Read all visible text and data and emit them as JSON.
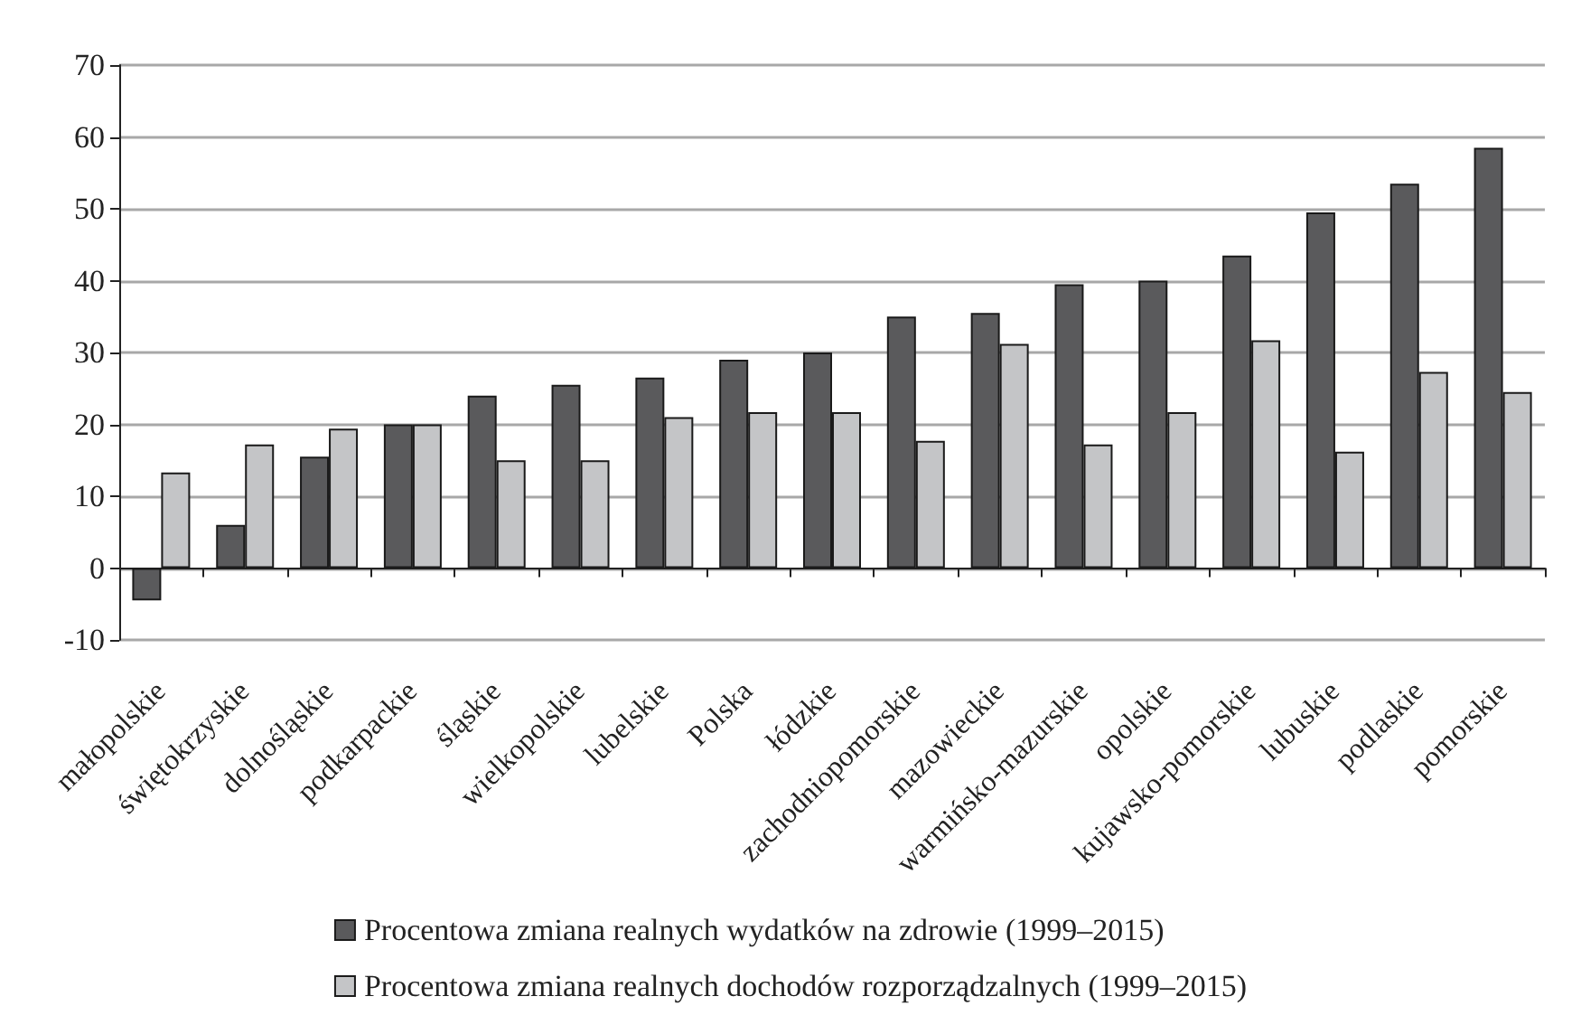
{
  "chart_data": {
    "type": "bar",
    "categories": [
      "małopolskie",
      "świętokrzyskie",
      "dolnośląskie",
      "podkarpackie",
      "śląskie",
      "wielkopolskie",
      "lubelskie",
      "Polska",
      "łódzkie",
      "zachodniopomorskie",
      "mazowieckie",
      "warmińsko-mazurskie",
      "opolskie",
      "kujawsko-pomorskie",
      "lubuskie",
      "podlaskie",
      "pomorskie"
    ],
    "series": [
      {
        "name": "Procentowa zmiana realnych wydatków na zdrowie (1999–2015)",
        "color": "#5a5a5c",
        "values": [
          -4.5,
          6,
          15.5,
          20,
          24,
          25.5,
          26.5,
          29,
          30,
          35,
          35.5,
          39.5,
          40,
          43.5,
          49.5,
          53.5,
          58.5
        ]
      },
      {
        "name": "Procentowa zmiana realnych dochodów rozporządzalnych (1999–2015)",
        "color": "#c4c5c7",
        "values": [
          13.3,
          17.2,
          19.4,
          20,
          15,
          15,
          21,
          21.7,
          21.7,
          17.7,
          31.2,
          17.2,
          21.7,
          31.7,
          16.2,
          27.3,
          24.5
        ]
      }
    ],
    "ylim": [
      -10,
      70
    ],
    "yticks": [
      -10,
      0,
      10,
      20,
      30,
      40,
      50,
      60,
      70
    ],
    "grid": "y",
    "legend": "bottom"
  }
}
